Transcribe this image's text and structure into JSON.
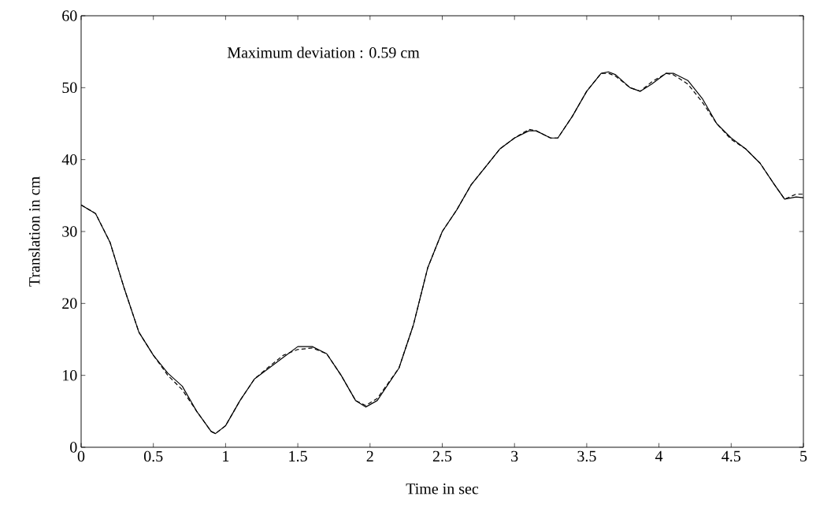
{
  "chart_data": {
    "type": "line",
    "xlabel": "Time in sec",
    "ylabel": "Translation in cm",
    "annotations": [
      "Maximum deviation : 0.59 cm"
    ],
    "xlim": [
      0,
      5
    ],
    "ylim": [
      0,
      60
    ],
    "xticks": [
      0,
      0.5,
      1,
      1.5,
      2,
      2.5,
      3,
      3.5,
      4,
      4.5,
      5
    ],
    "yticks": [
      0,
      10,
      20,
      30,
      40,
      50,
      60
    ],
    "marker": "none",
    "x": [
      0,
      0.1,
      0.2,
      0.3,
      0.4,
      0.5,
      0.6,
      0.7,
      0.8,
      0.9,
      0.93,
      1.0,
      1.1,
      1.2,
      1.3,
      1.4,
      1.5,
      1.6,
      1.7,
      1.8,
      1.9,
      1.97,
      2.05,
      2.2,
      2.3,
      2.4,
      2.5,
      2.6,
      2.7,
      2.8,
      2.9,
      3.0,
      3.1,
      3.15,
      3.25,
      3.3,
      3.4,
      3.5,
      3.6,
      3.65,
      3.7,
      3.8,
      3.87,
      3.95,
      4.05,
      4.1,
      4.2,
      4.3,
      4.4,
      4.5,
      4.6,
      4.7,
      4.8,
      4.87,
      4.95,
      5.0
    ],
    "series": [
      {
        "color": "#000000",
        "line_style": "solid",
        "values": [
          33.7,
          32.5,
          28.5,
          22,
          16,
          12.8,
          10.3,
          8.5,
          5,
          2.2,
          1.9,
          3,
          6.5,
          9.5,
          11,
          12.5,
          14,
          14,
          13,
          10,
          6.5,
          5.6,
          6.5,
          11,
          17,
          25,
          30,
          33,
          36.5,
          39,
          41.5,
          43,
          44,
          44,
          43,
          43,
          46,
          49.5,
          52,
          52.2,
          51.8,
          50,
          49.5,
          50.5,
          52,
          52,
          51,
          48.5,
          45,
          43,
          41.5,
          39.5,
          36.5,
          34.5,
          34.8,
          34.7
        ]
      },
      {
        "color": "#000000",
        "line_style": "dashed",
        "values": [
          33.7,
          32.5,
          28.5,
          22,
          16,
          12.8,
          10,
          8,
          5,
          2.2,
          1.9,
          3,
          6.5,
          9.5,
          11.2,
          12.8,
          13.6,
          13.8,
          13,
          10,
          6.5,
          5.8,
          6.8,
          11,
          17,
          25,
          30,
          33,
          36.5,
          39,
          41.5,
          43,
          44.2,
          44,
          43,
          43,
          46,
          49.5,
          52,
          52,
          51.6,
          50,
          49.5,
          50.8,
          52,
          51.8,
          50.5,
          48,
          45,
          42.8,
          41.5,
          39.5,
          36.5,
          34.5,
          35.2,
          35.2
        ]
      }
    ]
  }
}
